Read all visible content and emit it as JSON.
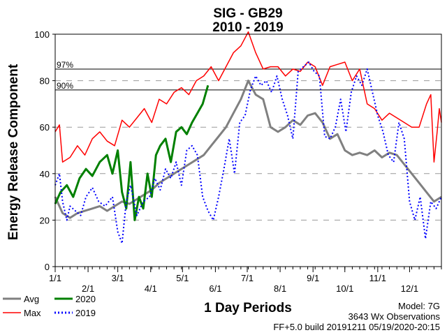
{
  "chart_data": {
    "type": "line",
    "title": "SIG - GB29",
    "subtitle": "2010 - 2019",
    "xlabel": "1 Day Periods",
    "ylabel": "Energy Release Component",
    "ylim": [
      0,
      100
    ],
    "y_ticks": [
      "0",
      "20",
      "40",
      "60",
      "80",
      "100"
    ],
    "x_tick_labels": [
      "1/1",
      "2/1",
      "3/1",
      "4/1",
      "5/1",
      "6/1",
      "7/1",
      "8/1",
      "9/1",
      "10/1",
      "11/1",
      "12/1"
    ],
    "x_range_days": [
      1,
      365
    ],
    "grid": "dashed horizontal",
    "percentiles": [
      {
        "label": "97%",
        "value": 85
      },
      {
        "label": "90%",
        "value": 76
      }
    ],
    "series": [
      {
        "name": "Avg",
        "color": "#808080",
        "style": "solid",
        "points": [
          [
            1,
            30
          ],
          [
            8,
            23
          ],
          [
            15,
            21
          ],
          [
            22,
            23
          ],
          [
            29,
            24
          ],
          [
            36,
            25
          ],
          [
            43,
            26
          ],
          [
            50,
            24
          ],
          [
            57,
            26
          ],
          [
            64,
            28
          ],
          [
            71,
            27
          ],
          [
            78,
            29
          ],
          [
            85,
            31
          ],
          [
            92,
            33
          ],
          [
            99,
            36
          ],
          [
            106,
            38
          ],
          [
            113,
            40
          ],
          [
            120,
            42
          ],
          [
            127,
            44
          ],
          [
            134,
            46
          ],
          [
            141,
            48
          ],
          [
            148,
            52
          ],
          [
            155,
            56
          ],
          [
            162,
            60
          ],
          [
            169,
            66
          ],
          [
            176,
            72
          ],
          [
            183,
            80
          ],
          [
            190,
            74
          ],
          [
            197,
            72
          ],
          [
            204,
            60
          ],
          [
            211,
            58
          ],
          [
            218,
            60
          ],
          [
            225,
            63
          ],
          [
            232,
            61
          ],
          [
            239,
            65
          ],
          [
            246,
            66
          ],
          [
            253,
            62
          ],
          [
            260,
            55
          ],
          [
            267,
            57
          ],
          [
            274,
            50
          ],
          [
            281,
            48
          ],
          [
            288,
            49
          ],
          [
            295,
            48
          ],
          [
            302,
            50
          ],
          [
            309,
            47
          ],
          [
            316,
            49
          ],
          [
            323,
            48
          ],
          [
            330,
            44
          ],
          [
            337,
            40
          ],
          [
            344,
            36
          ],
          [
            351,
            32
          ],
          [
            358,
            28
          ],
          [
            365,
            30
          ]
        ]
      },
      {
        "name": "Max",
        "color": "#ff0000",
        "style": "solid",
        "points": [
          [
            1,
            58
          ],
          [
            5,
            61
          ],
          [
            8,
            45
          ],
          [
            15,
            47
          ],
          [
            22,
            52
          ],
          [
            29,
            48
          ],
          [
            36,
            55
          ],
          [
            43,
            58
          ],
          [
            50,
            54
          ],
          [
            57,
            52
          ],
          [
            64,
            63
          ],
          [
            71,
            60
          ],
          [
            78,
            64
          ],
          [
            85,
            68
          ],
          [
            92,
            62
          ],
          [
            99,
            72
          ],
          [
            106,
            70
          ],
          [
            113,
            75
          ],
          [
            120,
            77
          ],
          [
            127,
            74
          ],
          [
            134,
            80
          ],
          [
            141,
            82
          ],
          [
            148,
            86
          ],
          [
            155,
            80
          ],
          [
            162,
            86
          ],
          [
            169,
            92
          ],
          [
            176,
            95
          ],
          [
            183,
            101
          ],
          [
            190,
            92
          ],
          [
            197,
            85
          ],
          [
            204,
            86
          ],
          [
            211,
            86
          ],
          [
            218,
            82
          ],
          [
            225,
            85
          ],
          [
            232,
            84
          ],
          [
            239,
            88
          ],
          [
            246,
            86
          ],
          [
            253,
            78
          ],
          [
            260,
            86
          ],
          [
            267,
            87
          ],
          [
            274,
            88
          ],
          [
            281,
            80
          ],
          [
            288,
            85
          ],
          [
            295,
            70
          ],
          [
            302,
            68
          ],
          [
            309,
            63
          ],
          [
            316,
            66
          ],
          [
            323,
            64
          ],
          [
            330,
            62
          ],
          [
            337,
            60
          ],
          [
            344,
            60
          ],
          [
            351,
            70
          ],
          [
            355,
            74
          ],
          [
            358,
            45
          ],
          [
            361,
            58
          ],
          [
            363,
            68
          ],
          [
            365,
            62
          ]
        ]
      },
      {
        "name": "2020",
        "color": "#008000",
        "style": "solid",
        "points": [
          [
            1,
            27
          ],
          [
            6,
            32
          ],
          [
            12,
            35
          ],
          [
            18,
            30
          ],
          [
            24,
            38
          ],
          [
            30,
            42
          ],
          [
            36,
            39
          ],
          [
            43,
            45
          ],
          [
            50,
            48
          ],
          [
            55,
            40
          ],
          [
            60,
            50
          ],
          [
            64,
            32
          ],
          [
            68,
            25
          ],
          [
            72,
            45
          ],
          [
            76,
            20
          ],
          [
            80,
            30
          ],
          [
            84,
            25
          ],
          [
            88,
            40
          ],
          [
            92,
            30
          ],
          [
            96,
            48
          ],
          [
            100,
            52
          ],
          [
            105,
            55
          ],
          [
            110,
            45
          ],
          [
            115,
            58
          ],
          [
            120,
            60
          ],
          [
            125,
            57
          ],
          [
            130,
            62
          ],
          [
            135,
            66
          ],
          [
            140,
            70
          ],
          [
            145,
            78
          ]
        ]
      },
      {
        "name": "2019",
        "color": "#0000ff",
        "style": "dotted",
        "points": [
          [
            1,
            35
          ],
          [
            5,
            40
          ],
          [
            8,
            28
          ],
          [
            12,
            20
          ],
          [
            15,
            26
          ],
          [
            20,
            24
          ],
          [
            25,
            22
          ],
          [
            30,
            30
          ],
          [
            36,
            34
          ],
          [
            42,
            28
          ],
          [
            48,
            26
          ],
          [
            55,
            30
          ],
          [
            60,
            15
          ],
          [
            64,
            10
          ],
          [
            68,
            28
          ],
          [
            72,
            35
          ],
          [
            78,
            22
          ],
          [
            84,
            28
          ],
          [
            90,
            30
          ],
          [
            95,
            38
          ],
          [
            100,
            33
          ],
          [
            105,
            42
          ],
          [
            110,
            38
          ],
          [
            115,
            45
          ],
          [
            120,
            35
          ],
          [
            125,
            50
          ],
          [
            130,
            52
          ],
          [
            135,
            48
          ],
          [
            140,
            30
          ],
          [
            145,
            24
          ],
          [
            150,
            20
          ],
          [
            155,
            30
          ],
          [
            160,
            42
          ],
          [
            165,
            55
          ],
          [
            170,
            40
          ],
          [
            175,
            62
          ],
          [
            180,
            65
          ],
          [
            185,
            76
          ],
          [
            190,
            82
          ],
          [
            195,
            78
          ],
          [
            200,
            80
          ],
          [
            205,
            75
          ],
          [
            210,
            82
          ],
          [
            215,
            72
          ],
          [
            220,
            65
          ],
          [
            225,
            55
          ],
          [
            230,
            84
          ],
          [
            235,
            86
          ],
          [
            240,
            88
          ],
          [
            245,
            84
          ],
          [
            250,
            82
          ],
          [
            255,
            56
          ],
          [
            260,
            55
          ],
          [
            265,
            60
          ],
          [
            270,
            72
          ],
          [
            275,
            58
          ],
          [
            280,
            75
          ],
          [
            285,
            82
          ],
          [
            290,
            78
          ],
          [
            295,
            85
          ],
          [
            300,
            75
          ],
          [
            305,
            65
          ],
          [
            310,
            58
          ],
          [
            315,
            48
          ],
          [
            320,
            45
          ],
          [
            325,
            62
          ],
          [
            330,
            55
          ],
          [
            335,
            28
          ],
          [
            340,
            20
          ],
          [
            345,
            30
          ],
          [
            350,
            12
          ],
          [
            355,
            28
          ],
          [
            360,
            25
          ],
          [
            365,
            30
          ]
        ]
      }
    ],
    "legend": [
      {
        "key": "avg",
        "label": "Avg",
        "color": "#808080",
        "style": "solid"
      },
      {
        "key": "max",
        "label": "Max",
        "color": "#ff0000",
        "style": "solid"
      },
      {
        "key": "y2020",
        "label": "2020",
        "color": "#008000",
        "style": "solid"
      },
      {
        "key": "y2019",
        "label": "2019",
        "color": "#0000ff",
        "style": "dotted"
      }
    ],
    "footer": {
      "model": "Model: 7G",
      "observations": "3643 Wx Observations",
      "build": "FF+5.0 build 20191211 05/19/2020-20:15"
    }
  }
}
